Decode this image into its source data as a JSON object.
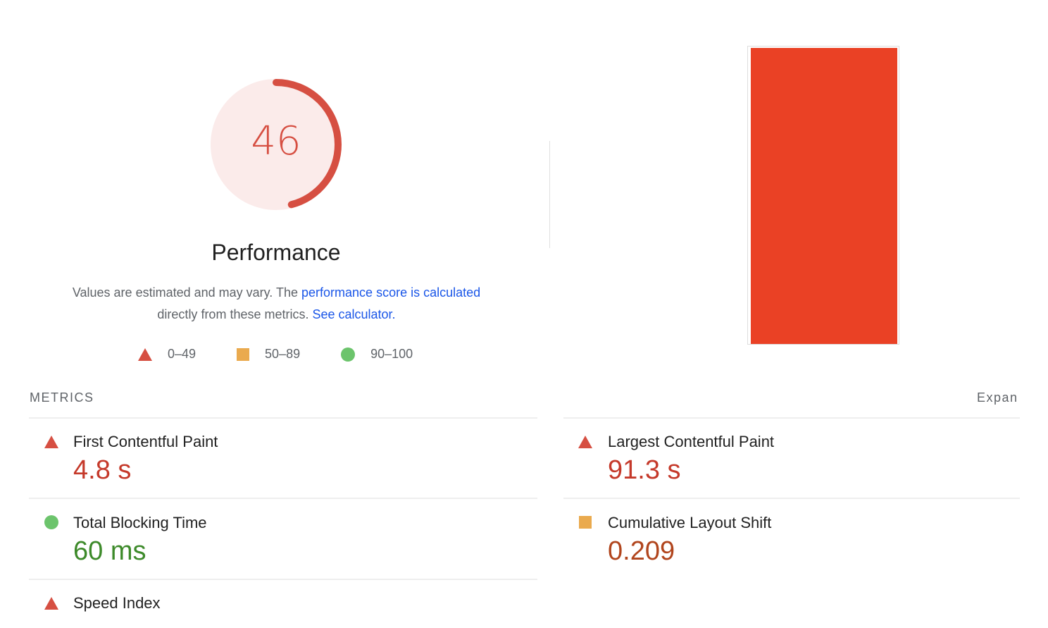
{
  "gauge": {
    "score": "46",
    "value_percent": 46,
    "color": "#d64f42",
    "bg": "#fbebea"
  },
  "category": {
    "title": "Performance"
  },
  "description": {
    "text1": "Values are estimated and may vary. The ",
    "link1": "performance score is calculated",
    "text2": "directly from these metrics. ",
    "link2": "See calculator."
  },
  "legend": [
    {
      "icon": "triangle-icon",
      "label": "0–49",
      "color": "#d64f42"
    },
    {
      "icon": "square-icon",
      "label": "50–89",
      "color": "#eaaa4e"
    },
    {
      "icon": "circle-icon",
      "label": "90–100",
      "color": "#6cc46c"
    }
  ],
  "screenshot": {
    "color": "#ea4125"
  },
  "metrics": {
    "label": "METRICS",
    "expand": "Expan",
    "items": [
      {
        "name": "First Contentful Paint",
        "value": "4.8 s",
        "rating": "fail"
      },
      {
        "name": "Largest Contentful Paint",
        "value": "91.3 s",
        "rating": "fail"
      },
      {
        "name": "Total Blocking Time",
        "value": "60 ms",
        "rating": "pass"
      },
      {
        "name": "Cumulative Layout Shift",
        "value": "0.209",
        "rating": "average"
      },
      {
        "name": "Speed Index",
        "value": "",
        "rating": "fail"
      }
    ]
  }
}
